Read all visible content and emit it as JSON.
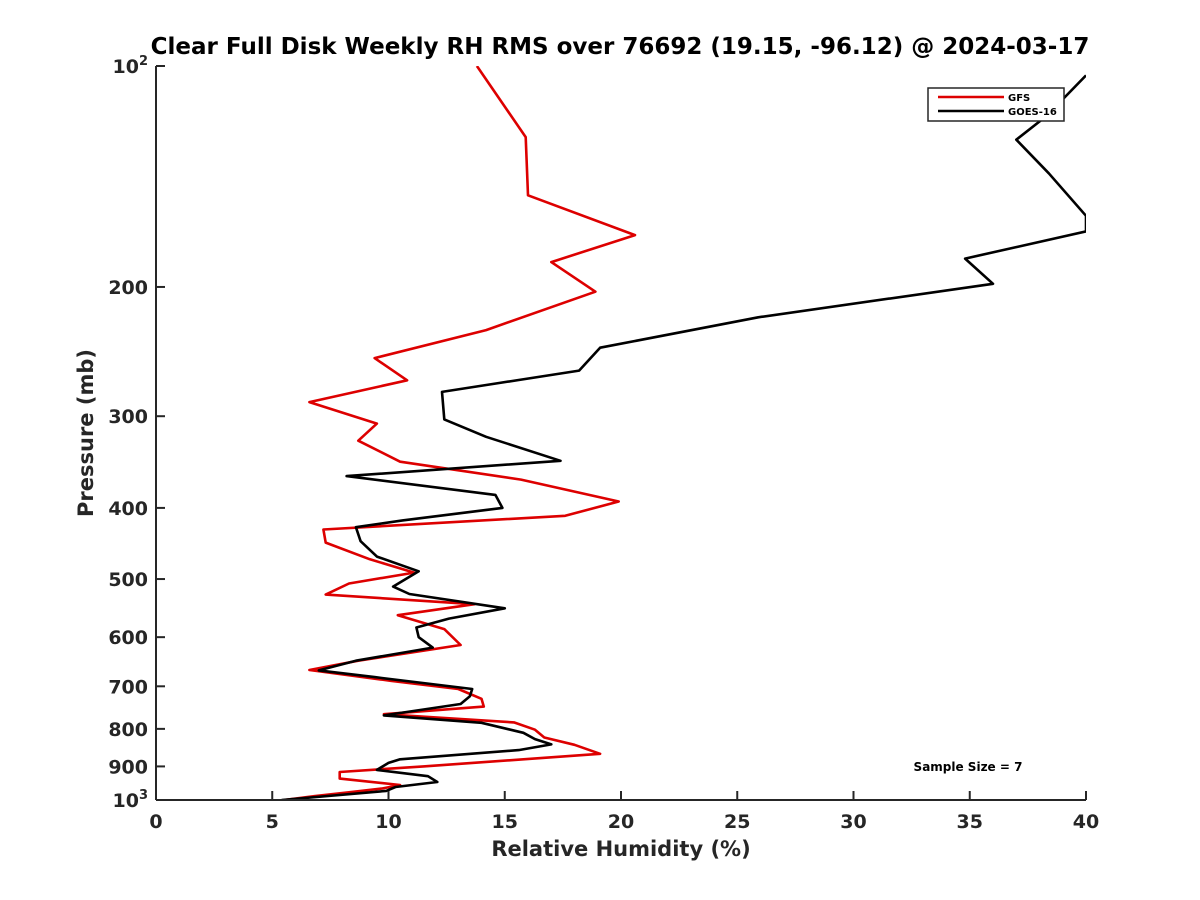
{
  "chart_data": {
    "type": "line",
    "title": "Clear Full Disk Weekly RH RMS over 76692 (19.15, -96.12) @ 2024-03-17",
    "xlabel": "Relative Humidity (%)",
    "ylabel": "Pressure (mb)",
    "xlim": [
      0,
      40
    ],
    "ylim": [
      100,
      1000
    ],
    "yscale": "log",
    "y_reversed": true,
    "x_ticks": [
      0,
      5,
      10,
      15,
      20,
      25,
      30,
      35,
      40
    ],
    "x_tick_labels": [
      "0",
      "5",
      "10",
      "15",
      "20",
      "25",
      "30",
      "35",
      "40"
    ],
    "y_ticks": [
      100,
      200,
      300,
      400,
      500,
      600,
      700,
      800,
      900,
      1000
    ],
    "y_tick_labels": [
      {
        "base": "10",
        "sup": "2"
      },
      {
        "base": "200",
        "sup": ""
      },
      {
        "base": "300",
        "sup": ""
      },
      {
        "base": "400",
        "sup": ""
      },
      {
        "base": "500",
        "sup": ""
      },
      {
        "base": "600",
        "sup": ""
      },
      {
        "base": "700",
        "sup": ""
      },
      {
        "base": "800",
        "sup": ""
      },
      {
        "base": "900",
        "sup": ""
      },
      {
        "base": "10",
        "sup": "3"
      }
    ],
    "legend_position": "top-right",
    "annotation": "Sample Size = 7",
    "series": [
      {
        "name": "GFS",
        "color": "#dd0000",
        "points": [
          [
            13.8,
            100
          ],
          [
            15.9,
            125
          ],
          [
            16.0,
            150
          ],
          [
            20.6,
            170
          ],
          [
            17.0,
            185
          ],
          [
            18.9,
            203
          ],
          [
            14.2,
            229
          ],
          [
            9.4,
            250
          ],
          [
            10.8,
            268
          ],
          [
            6.6,
            287
          ],
          [
            9.5,
            307
          ],
          [
            8.7,
            324
          ],
          [
            10.5,
            346
          ],
          [
            15.7,
            366
          ],
          [
            19.9,
            392
          ],
          [
            17.6,
            410
          ],
          [
            7.2,
            428
          ],
          [
            7.3,
            446
          ],
          [
            9.2,
            470
          ],
          [
            11.1,
            490
          ],
          [
            8.3,
            507
          ],
          [
            7.3,
            525
          ],
          [
            13.7,
            541
          ],
          [
            10.4,
            560
          ],
          [
            12.4,
            585
          ],
          [
            13.1,
            615
          ],
          [
            8.7,
            646
          ],
          [
            6.6,
            665
          ],
          [
            10.1,
            688
          ],
          [
            13.0,
            706
          ],
          [
            14.0,
            728
          ],
          [
            14.1,
            746
          ],
          [
            9.8,
            764
          ],
          [
            15.4,
            784
          ],
          [
            16.3,
            802
          ],
          [
            16.7,
            822
          ],
          [
            18.0,
            841
          ],
          [
            19.1,
            865
          ],
          [
            15.8,
            880
          ],
          [
            11.5,
            900
          ],
          [
            7.9,
            916
          ],
          [
            7.9,
            935
          ],
          [
            10.5,
            954
          ],
          [
            9.7,
            965
          ],
          [
            8.3,
            976
          ],
          [
            6.8,
            988
          ],
          [
            5.5,
            1000
          ]
        ]
      },
      {
        "name": "GOES-16",
        "color": "#000000",
        "points": [
          [
            40.0,
            103
          ],
          [
            38.3,
            117
          ],
          [
            37.0,
            126
          ],
          [
            38.4,
            140
          ],
          [
            40.0,
            160
          ],
          [
            40.0,
            168
          ],
          [
            34.8,
            183
          ],
          [
            36.0,
            198
          ],
          [
            25.9,
            220
          ],
          [
            19.1,
            242
          ],
          [
            18.2,
            260
          ],
          [
            12.3,
            278
          ],
          [
            12.4,
            303
          ],
          [
            14.2,
            320
          ],
          [
            17.4,
            345
          ],
          [
            8.2,
            362
          ],
          [
            14.6,
            384
          ],
          [
            14.9,
            400
          ],
          [
            10.6,
            416
          ],
          [
            8.6,
            425
          ],
          [
            8.8,
            444
          ],
          [
            9.5,
            466
          ],
          [
            11.3,
            488
          ],
          [
            10.2,
            512
          ],
          [
            10.9,
            524
          ],
          [
            15.0,
            548
          ],
          [
            12.6,
            566
          ],
          [
            11.2,
            582
          ],
          [
            11.3,
            600
          ],
          [
            11.9,
            620
          ],
          [
            8.6,
            646
          ],
          [
            7.0,
            666
          ],
          [
            9.4,
            680
          ],
          [
            13.6,
            706
          ],
          [
            13.5,
            722
          ],
          [
            13.1,
            740
          ],
          [
            9.8,
            767
          ],
          [
            14.0,
            785
          ],
          [
            15.8,
            810
          ],
          [
            16.3,
            826
          ],
          [
            17.0,
            840
          ],
          [
            15.6,
            855
          ],
          [
            10.5,
            880
          ],
          [
            10.0,
            890
          ],
          [
            9.5,
            910
          ],
          [
            11.7,
            928
          ],
          [
            12.1,
            945
          ],
          [
            10.3,
            960
          ],
          [
            9.9,
            972
          ],
          [
            5.4,
            1000
          ]
        ]
      }
    ]
  }
}
